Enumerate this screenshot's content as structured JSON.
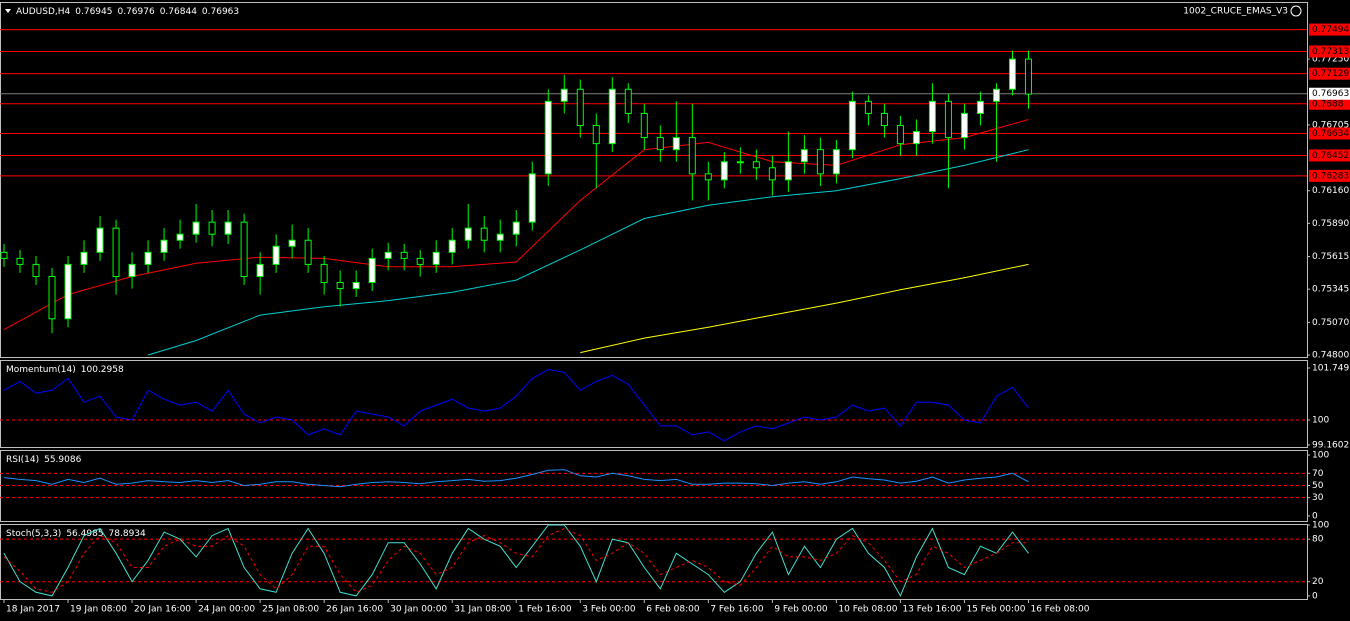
{
  "chart_data": [
    {
      "type": "candlestick",
      "title": "AUDUSD,H4",
      "title_values": [
        0.76945,
        0.76976,
        0.76844,
        0.76963
      ],
      "indicator_label": "1002_CRUCE_EMAS_V3",
      "xlim": [
        -0.25,
        81.4
      ],
      "ylim": [
        0.748,
        0.7759
      ],
      "grid": false,
      "yticks": [
        {
          "value": 0.7725,
          "label": "0.77250"
        },
        0.76705,
        {
          "value": 0.7616,
          "label": "0.76160"
        },
        {
          "value": 0.7589,
          "label": "0.75890"
        },
        0.75615,
        0.75345,
        {
          "value": 0.7507,
          "label": "0.75070"
        },
        {
          "value": 0.748,
          "label": "0.74800"
        }
      ],
      "hlines": [
        0.77494,
        0.77313,
        0.77129,
        0.7688,
        0.76634,
        0.76452,
        0.76283
      ],
      "hline_color": "#ff0000",
      "price_line": 0.76963,
      "bull_color": "#ffffff",
      "bear_color": "#000000",
      "wick_color": "#00ff00",
      "open": [
        0.7565,
        0.756,
        0.7555,
        0.7545,
        0.751,
        0.7555,
        0.7565,
        0.7585,
        0.7545,
        0.7555,
        0.7565,
        0.7575,
        0.758,
        0.759,
        0.758,
        0.759,
        0.7545,
        0.7555,
        0.757,
        0.7575,
        0.7555,
        0.754,
        0.7535,
        0.754,
        0.756,
        0.7565,
        0.756,
        0.7555,
        0.7565,
        0.7575,
        0.7585,
        0.7575,
        0.758,
        0.759,
        0.763,
        0.769,
        0.77,
        0.767,
        0.7655,
        0.77,
        0.768,
        0.766,
        0.765,
        0.766,
        0.763,
        0.7625,
        0.764,
        0.764,
        0.7635,
        0.7625,
        0.764,
        0.765,
        0.763,
        0.765,
        0.769,
        0.768,
        0.767,
        0.7655,
        0.7665,
        0.769,
        0.766,
        0.768,
        0.769,
        0.77,
        0.7725
      ],
      "high": [
        0.7572,
        0.7567,
        0.7562,
        0.7552,
        0.7562,
        0.7575,
        0.7595,
        0.7592,
        0.7565,
        0.7575,
        0.7585,
        0.7592,
        0.7605,
        0.76,
        0.76,
        0.7597,
        0.7565,
        0.758,
        0.7588,
        0.7585,
        0.7562,
        0.755,
        0.755,
        0.7568,
        0.7573,
        0.7572,
        0.7567,
        0.7575,
        0.7585,
        0.7605,
        0.7595,
        0.7592,
        0.76,
        0.764,
        0.77,
        0.7712,
        0.7708,
        0.768,
        0.771,
        0.7705,
        0.7688,
        0.767,
        0.769,
        0.7688,
        0.764,
        0.7648,
        0.7652,
        0.765,
        0.7645,
        0.7665,
        0.7662,
        0.766,
        0.7658,
        0.7698,
        0.7695,
        0.7688,
        0.7678,
        0.7675,
        0.7705,
        0.7696,
        0.7688,
        0.7698,
        0.7705,
        0.7732,
        0.7732
      ],
      "low": [
        0.7553,
        0.7548,
        0.7538,
        0.7498,
        0.7503,
        0.7548,
        0.7558,
        0.753,
        0.7535,
        0.7548,
        0.7558,
        0.7568,
        0.7573,
        0.757,
        0.7572,
        0.7538,
        0.753,
        0.7548,
        0.756,
        0.7548,
        0.753,
        0.752,
        0.7528,
        0.7533,
        0.755,
        0.755,
        0.7545,
        0.7548,
        0.7555,
        0.7568,
        0.7565,
        0.7565,
        0.757,
        0.7583,
        0.762,
        0.768,
        0.766,
        0.7618,
        0.7648,
        0.7672,
        0.765,
        0.764,
        0.764,
        0.7608,
        0.7608,
        0.7618,
        0.763,
        0.7625,
        0.7612,
        0.7615,
        0.763,
        0.762,
        0.7622,
        0.7643,
        0.767,
        0.766,
        0.7645,
        0.7645,
        0.7655,
        0.7618,
        0.765,
        0.767,
        0.764,
        0.7695,
        0.7684
      ],
      "close": [
        0.756,
        0.7555,
        0.7545,
        0.751,
        0.7555,
        0.7565,
        0.7585,
        0.7545,
        0.7555,
        0.7565,
        0.7575,
        0.758,
        0.759,
        0.758,
        0.759,
        0.7545,
        0.7555,
        0.757,
        0.7575,
        0.7555,
        0.754,
        0.7535,
        0.754,
        0.756,
        0.7565,
        0.756,
        0.7555,
        0.7565,
        0.7575,
        0.7585,
        0.7575,
        0.758,
        0.759,
        0.763,
        0.769,
        0.77,
        0.767,
        0.7655,
        0.77,
        0.768,
        0.766,
        0.765,
        0.766,
        0.763,
        0.7625,
        0.764,
        0.764,
        0.7635,
        0.7625,
        0.764,
        0.765,
        0.763,
        0.765,
        0.769,
        0.768,
        0.767,
        0.7655,
        0.7665,
        0.769,
        0.766,
        0.768,
        0.769,
        0.77,
        0.7725,
        0.7696
      ],
      "series": [
        {
          "color": "#ff0000",
          "x": [
            0,
            4,
            8,
            12,
            16,
            20,
            24,
            28,
            32,
            36,
            40,
            44,
            48,
            52,
            56,
            60,
            64
          ],
          "values": [
            0.7501,
            0.753,
            0.7545,
            0.7556,
            0.7561,
            0.756,
            0.7553,
            0.7553,
            0.7557,
            0.7608,
            0.765,
            0.7656,
            0.764,
            0.7637,
            0.7654,
            0.766,
            0.7675
          ]
        },
        {
          "color": "#00ced1",
          "x": [
            9,
            12,
            16,
            20,
            24,
            28,
            32,
            36,
            40,
            44,
            48,
            52,
            56,
            60,
            64
          ],
          "values": [
            0.748,
            0.7492,
            0.7513,
            0.752,
            0.7525,
            0.7532,
            0.7542,
            0.7567,
            0.7593,
            0.7604,
            0.7611,
            0.7616,
            0.7626,
            0.7637,
            0.765
          ]
        },
        {
          "color": "#ffff00",
          "x": [
            36,
            40,
            44,
            48,
            52,
            56,
            60,
            64
          ],
          "values": [
            0.7482,
            0.7494,
            0.7503,
            0.7513,
            0.7523,
            0.7534,
            0.7544,
            0.7555
          ]
        }
      ]
    },
    {
      "type": "line",
      "title": "Momentum(14)",
      "title_values": [
        100.2958
      ],
      "xlim": [
        -0.25,
        81.4
      ],
      "ylim": [
        99.125,
        101.985
      ],
      "yticks": [
        101.7495,
        100,
        99.1602
      ],
      "levels": [
        100
      ],
      "level_color": "#ff0000",
      "series": [
        {
          "color": "#0000ff",
          "values": [
            101.0,
            101.3,
            100.9,
            101.0,
            101.4,
            100.6,
            100.8,
            100.1,
            100.0,
            101.0,
            100.7,
            100.5,
            100.6,
            100.3,
            101.0,
            100.2,
            99.9,
            100.1,
            100.0,
            99.5,
            99.7,
            99.5,
            100.3,
            100.2,
            100.1,
            99.8,
            100.3,
            100.5,
            100.7,
            100.4,
            100.3,
            100.4,
            100.8,
            101.4,
            101.7,
            101.6,
            101.0,
            101.3,
            101.5,
            101.2,
            100.5,
            99.8,
            99.8,
            99.5,
            99.6,
            99.3,
            99.6,
            99.8,
            99.7,
            99.9,
            100.1,
            100.0,
            100.1,
            100.5,
            100.3,
            100.4,
            99.8,
            100.6,
            100.6,
            100.5,
            100.0,
            99.9,
            100.8,
            101.1,
            100.4
          ]
        }
      ]
    },
    {
      "type": "line",
      "title": "RSI(14)",
      "title_values": [
        55.9086
      ],
      "xlim": [
        -0.25,
        81.4
      ],
      "ylim": [
        -6.7,
        106.7
      ],
      "yticks": [
        100,
        70,
        50,
        30,
        0
      ],
      "levels": [
        70,
        50,
        30
      ],
      "level_color": "#ff0000",
      "series": [
        {
          "color": "#1e90ff",
          "values": [
            63,
            60,
            58,
            52,
            60,
            55,
            62,
            52,
            54,
            58,
            56,
            55,
            58,
            55,
            58,
            50,
            52,
            56,
            56,
            52,
            50,
            48,
            52,
            55,
            56,
            55,
            53,
            56,
            58,
            60,
            57,
            58,
            62,
            68,
            75,
            76,
            66,
            64,
            70,
            66,
            60,
            58,
            60,
            52,
            52,
            54,
            54,
            53,
            50,
            54,
            56,
            52,
            56,
            64,
            61,
            59,
            54,
            57,
            64,
            54,
            59,
            62,
            64,
            70,
            56
          ]
        }
      ]
    },
    {
      "type": "line",
      "title": "Stoch(5,3,3)",
      "title_values": [
        56.4985,
        78.8934
      ],
      "xlim": [
        -0.25,
        81.4
      ],
      "ylim": [
        -3,
        100
      ],
      "yticks": [
        100,
        80,
        20,
        0
      ],
      "levels": [
        80,
        20
      ],
      "level_color": "#ff0000",
      "xticks": [
        {
          "value": 0,
          "label": "18 Jan 2017"
        },
        {
          "value": 4,
          "label": "19 Jan 08:00"
        },
        {
          "value": 8,
          "label": "20 Jan 16:00"
        },
        {
          "value": 12,
          "label": "24 Jan 00:00"
        },
        {
          "value": 16,
          "label": "25 Jan 08:00"
        },
        {
          "value": 20,
          "label": "26 Jan 16:00"
        },
        {
          "value": 24,
          "label": "30 Jan 00:00"
        },
        {
          "value": 28,
          "label": "31 Jan 08:00"
        },
        {
          "value": 32,
          "label": "1 Feb 16:00"
        },
        {
          "value": 36,
          "label": "3 Feb 00:00"
        },
        {
          "value": 40,
          "label": "6 Feb 08:00"
        },
        {
          "value": 44,
          "label": "7 Feb 16:00"
        },
        {
          "value": 48,
          "label": "9 Feb 00:00"
        },
        {
          "value": 52,
          "label": "10 Feb 08:00"
        },
        {
          "value": 56,
          "label": "13 Feb 16:00"
        },
        {
          "value": 60,
          "label": "15 Feb 00:00"
        },
        {
          "value": 64,
          "label": "16 Feb 08:00"
        }
      ],
      "series": [
        {
          "color": "#40e0d0",
          "values": [
            60,
            20,
            5,
            0,
            40,
            85,
            95,
            60,
            20,
            50,
            90,
            80,
            55,
            85,
            95,
            40,
            10,
            5,
            60,
            95,
            60,
            5,
            0,
            30,
            75,
            75,
            45,
            10,
            60,
            95,
            80,
            70,
            40,
            70,
            100,
            100,
            70,
            20,
            80,
            75,
            40,
            10,
            60,
            45,
            30,
            5,
            20,
            60,
            90,
            30,
            70,
            40,
            80,
            95,
            60,
            40,
            0,
            55,
            95,
            40,
            30,
            70,
            60,
            90,
            60
          ]
        },
        {
          "color": "#ff0000",
          "style": "dashed",
          "values": [
            55,
            35,
            10,
            5,
            20,
            60,
            85,
            75,
            40,
            40,
            70,
            80,
            70,
            70,
            85,
            70,
            30,
            10,
            30,
            70,
            70,
            30,
            5,
            15,
            50,
            70,
            60,
            30,
            40,
            75,
            85,
            75,
            60,
            55,
            85,
            95,
            85,
            50,
            60,
            75,
            60,
            30,
            40,
            50,
            40,
            20,
            15,
            40,
            70,
            55,
            55,
            50,
            60,
            85,
            75,
            50,
            20,
            30,
            70,
            60,
            40,
            50,
            60,
            75,
            75
          ]
        }
      ]
    }
  ]
}
